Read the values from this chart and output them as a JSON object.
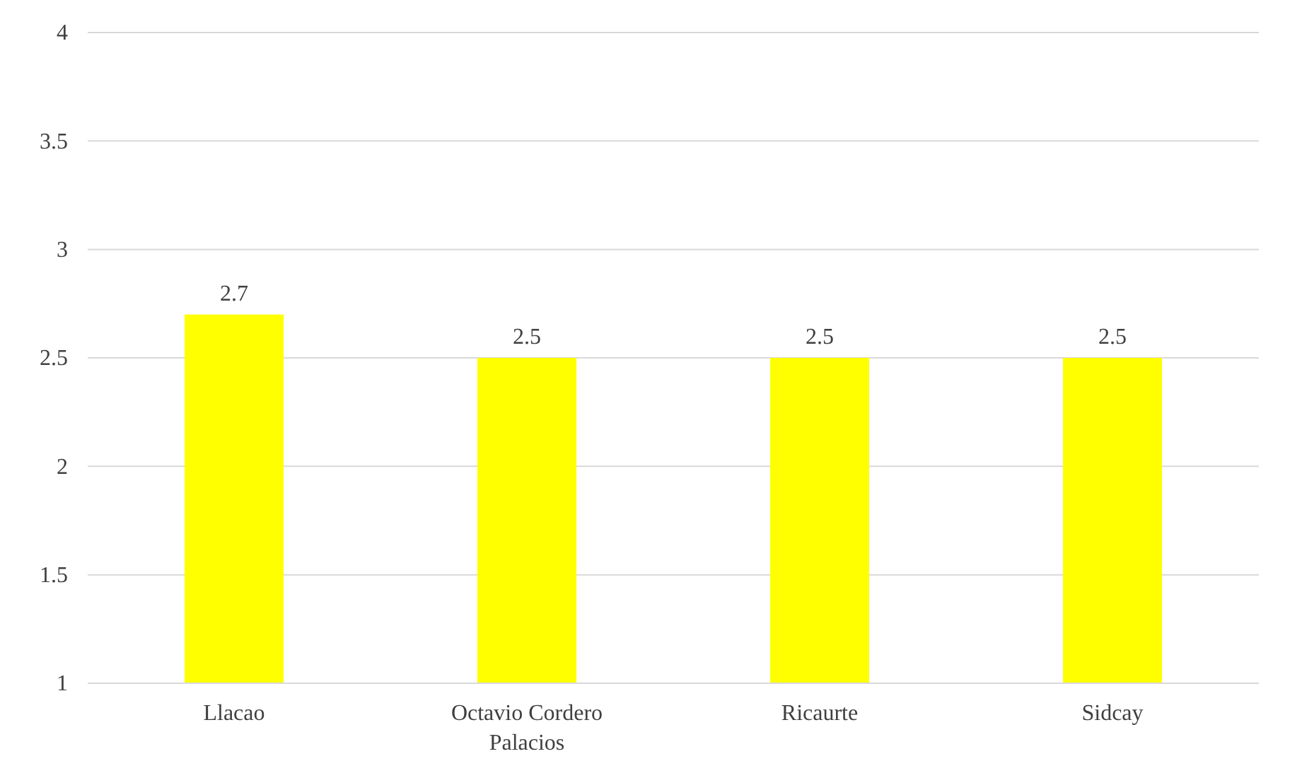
{
  "chart_data": {
    "type": "bar",
    "categories": [
      "Llacao",
      "Octavio Cordero Palacios",
      "Ricaurte",
      "Sidcay"
    ],
    "values": [
      2.7,
      2.5,
      2.5,
      2.5
    ],
    "color": "#ffff00",
    "ylim": [
      1,
      4
    ],
    "yticks": [
      1,
      1.5,
      2,
      2.5,
      3,
      3.5,
      4
    ],
    "grid": "y",
    "data_labels": true
  }
}
